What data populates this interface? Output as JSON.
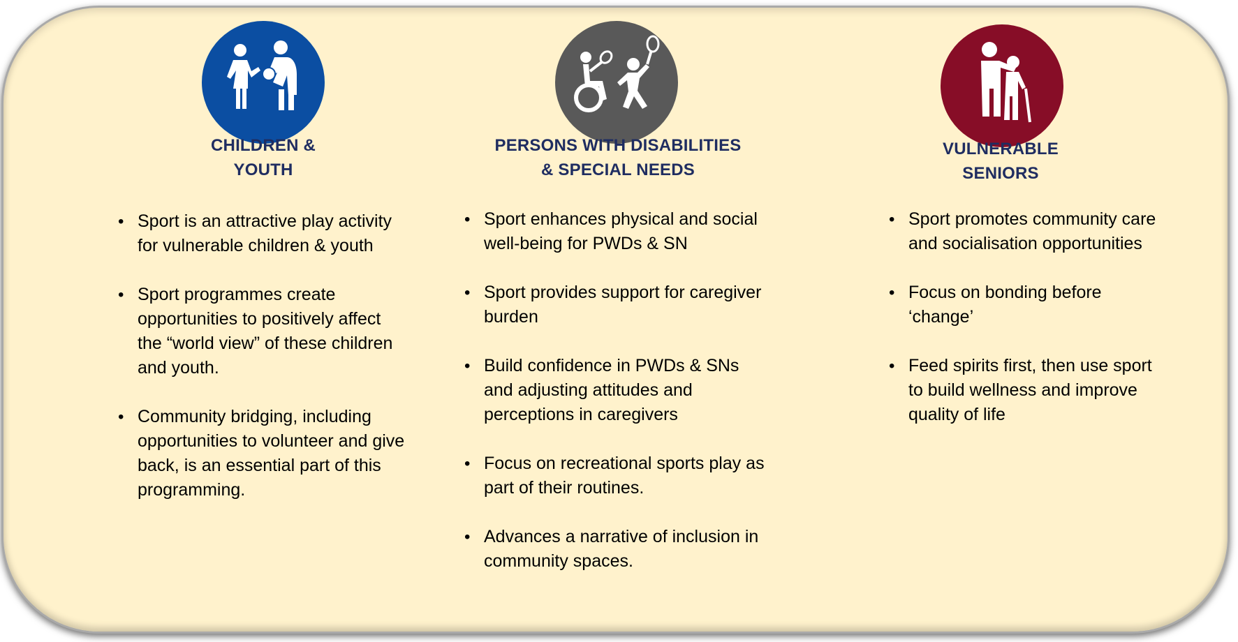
{
  "colors": {
    "panel_bg": "#fff2cc",
    "heading": "#1f2d61",
    "children_icon": "#0b4ea2",
    "disabilities_icon": "#595959",
    "seniors_icon": "#870d27"
  },
  "columns": [
    {
      "icon": "children-playing-icon",
      "heading_line1": "CHILDREN &",
      "heading_line2": "YOUTH",
      "bullets": [
        "Sport is an attractive play activity for vulnerable children & youth",
        "Sport programmes create opportunities to positively affect the “world view” of these children and youth.",
        "Community bridging, including opportunities to volunteer and give back, is an essential part of this programming."
      ]
    },
    {
      "icon": "wheelchair-sports-icon",
      "heading_line1": "PERSONS WITH DISABILITIES",
      "heading_line2": "& SPECIAL NEEDS",
      "bullets": [
        "Sport enhances physical and social well-being for PWDs & SN",
        "Sport provides support for caregiver burden",
        "Build confidence in PWDs & SNs and adjusting attitudes and perceptions in caregivers",
        "Focus on recreational sports play as part of their routines.",
        "Advances a narrative of inclusion in community spaces."
      ]
    },
    {
      "icon": "senior-with-caregiver-icon",
      "heading_line1": "VULNERABLE",
      "heading_line2": "SENIORS",
      "bullets": [
        "Sport promotes community care and socialisation opportunities",
        "Focus on bonding before ‘change’",
        "Feed spirits first, then use sport to build wellness and improve quality of life"
      ]
    }
  ]
}
